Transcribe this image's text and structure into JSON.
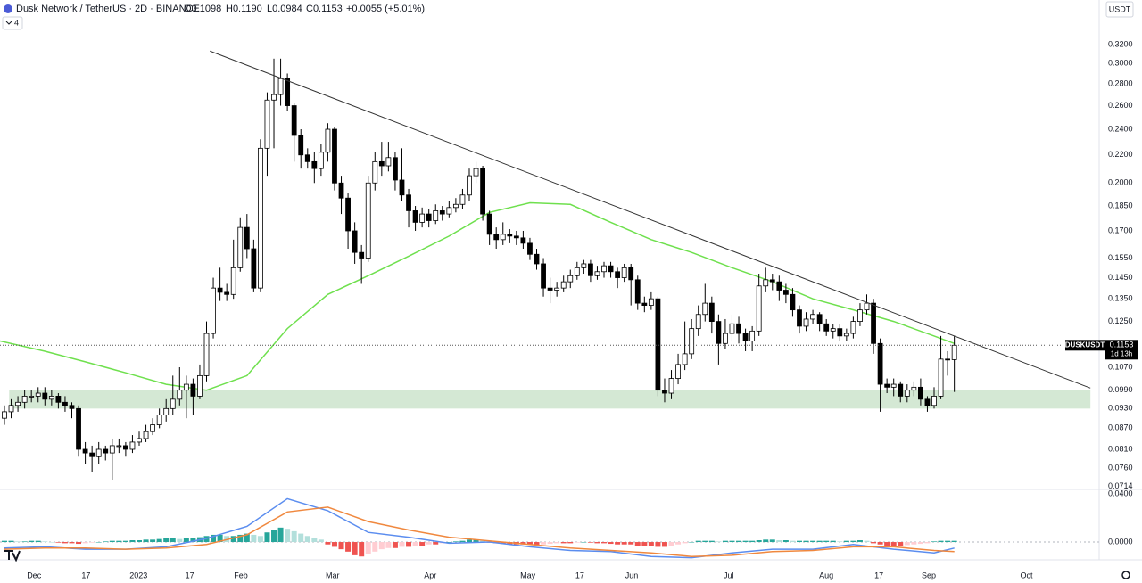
{
  "chart_data": {
    "type": "candlestick",
    "title": "Dusk Network / TetherUS · 2D · BINANCE",
    "legend": {
      "open": "O0.1098",
      "high": "H0.1190",
      "low": "L0.0984",
      "close": "C0.1153",
      "change": "+0.0055 (+5.01%)"
    },
    "indicator_count": 4,
    "currency": "USDT",
    "symbol_label": "DUSKUSDT",
    "last_price": 0.1153,
    "countdown": "1d 13h",
    "log": true,
    "grid": false,
    "up_color": "#ffffff",
    "down_color": "#000000",
    "border_color": "#000000",
    "ylim": [
      0.0709,
      0.3722
    ],
    "yticks": [
      {
        "value": 0.32,
        "label": "0.3200"
      },
      {
        "value": 0.3,
        "label": "0.3000"
      },
      {
        "value": 0.28,
        "label": "0.2800"
      },
      {
        "value": 0.26,
        "label": "0.2600"
      },
      {
        "value": 0.24,
        "label": "0.2400"
      },
      {
        "value": 0.22,
        "label": "0.2200"
      },
      {
        "value": 0.2,
        "label": "0.2000"
      },
      {
        "value": 0.185,
        "label": "0.1850"
      },
      {
        "value": 0.17,
        "label": "0.1700"
      },
      {
        "value": 0.155,
        "label": "0.1550"
      },
      {
        "value": 0.145,
        "label": "0.1450"
      },
      {
        "value": 0.135,
        "label": "0.1350"
      },
      {
        "value": 0.125,
        "label": "0.1250"
      },
      {
        "value": 0.107,
        "label": "0.1070"
      },
      {
        "value": 0.099,
        "label": "0.0990"
      },
      {
        "value": 0.093,
        "label": "0.0930"
      },
      {
        "value": 0.087,
        "label": "0.0870"
      },
      {
        "value": 0.081,
        "label": "0.0810"
      },
      {
        "value": 0.076,
        "label": "0.0760"
      },
      {
        "value": 0.0714,
        "label": "0.0714"
      }
    ],
    "xlim": [
      -0.66,
      162.5
    ],
    "xticks": [
      {
        "value": 4.4,
        "label": "Dec"
      },
      {
        "value": 12.1,
        "label": "17"
      },
      {
        "value": 19.9,
        "label": "2023"
      },
      {
        "value": 27.5,
        "label": "17"
      },
      {
        "value": 35.1,
        "label": "Feb"
      },
      {
        "value": 48.7,
        "label": "Mar"
      },
      {
        "value": 63.2,
        "label": "Apr"
      },
      {
        "value": 77.7,
        "label": "May"
      },
      {
        "value": 85.4,
        "label": "17"
      },
      {
        "value": 93.1,
        "label": "Jun"
      },
      {
        "value": 107.5,
        "label": "Jul"
      },
      {
        "value": 122.0,
        "label": "Aug"
      },
      {
        "value": 129.8,
        "label": "17"
      },
      {
        "value": 137.2,
        "label": "Sep"
      },
      {
        "value": 151.7,
        "label": "Oct"
      }
    ],
    "candles": [
      [
        0.09,
        0.094,
        0.088,
        0.092
      ],
      [
        0.092,
        0.096,
        0.09,
        0.094
      ],
      [
        0.094,
        0.097,
        0.092,
        0.095
      ],
      [
        0.095,
        0.099,
        0.093,
        0.097
      ],
      [
        0.097,
        0.099,
        0.095,
        0.097
      ],
      [
        0.097,
        0.1,
        0.095,
        0.098
      ],
      [
        0.098,
        0.1,
        0.094,
        0.096
      ],
      [
        0.096,
        0.099,
        0.094,
        0.097
      ],
      [
        0.097,
        0.098,
        0.093,
        0.095
      ],
      [
        0.095,
        0.097,
        0.092,
        0.094
      ],
      [
        0.094,
        0.095,
        0.09,
        0.093
      ],
      [
        0.093,
        0.094,
        0.079,
        0.081
      ],
      [
        0.081,
        0.083,
        0.077,
        0.08
      ],
      [
        0.08,
        0.082,
        0.075,
        0.079
      ],
      [
        0.079,
        0.083,
        0.077,
        0.081
      ],
      [
        0.081,
        0.082,
        0.078,
        0.08
      ],
      [
        0.08,
        0.084,
        0.073,
        0.082
      ],
      [
        0.082,
        0.084,
        0.08,
        0.082
      ],
      [
        0.082,
        0.083,
        0.079,
        0.081
      ],
      [
        0.081,
        0.085,
        0.08,
        0.083
      ],
      [
        0.083,
        0.086,
        0.082,
        0.084
      ],
      [
        0.084,
        0.088,
        0.083,
        0.086
      ],
      [
        0.086,
        0.09,
        0.085,
        0.088
      ],
      [
        0.088,
        0.093,
        0.087,
        0.091
      ],
      [
        0.091,
        0.096,
        0.089,
        0.093
      ],
      [
        0.093,
        0.104,
        0.091,
        0.096
      ],
      [
        0.096,
        0.107,
        0.094,
        0.099
      ],
      [
        0.099,
        0.104,
        0.09,
        0.101
      ],
      [
        0.101,
        0.103,
        0.091,
        0.097
      ],
      [
        0.097,
        0.108,
        0.096,
        0.104
      ],
      [
        0.104,
        0.125,
        0.102,
        0.12
      ],
      [
        0.12,
        0.145,
        0.118,
        0.14
      ],
      [
        0.14,
        0.15,
        0.134,
        0.138
      ],
      [
        0.138,
        0.142,
        0.134,
        0.137
      ],
      [
        0.137,
        0.165,
        0.135,
        0.15
      ],
      [
        0.15,
        0.178,
        0.148,
        0.172
      ],
      [
        0.172,
        0.18,
        0.155,
        0.16
      ],
      [
        0.16,
        0.165,
        0.138,
        0.14
      ],
      [
        0.14,
        0.232,
        0.138,
        0.225
      ],
      [
        0.225,
        0.272,
        0.205,
        0.265
      ],
      [
        0.265,
        0.305,
        0.225,
        0.27
      ],
      [
        0.27,
        0.305,
        0.26,
        0.285
      ],
      [
        0.285,
        0.29,
        0.255,
        0.26
      ],
      [
        0.26,
        0.262,
        0.215,
        0.235
      ],
      [
        0.235,
        0.24,
        0.21,
        0.22
      ],
      [
        0.22,
        0.225,
        0.21,
        0.215
      ],
      [
        0.215,
        0.222,
        0.2,
        0.21
      ],
      [
        0.21,
        0.228,
        0.205,
        0.222
      ],
      [
        0.222,
        0.245,
        0.215,
        0.24
      ],
      [
        0.24,
        0.242,
        0.195,
        0.2
      ],
      [
        0.2,
        0.205,
        0.18,
        0.19
      ],
      [
        0.19,
        0.193,
        0.16,
        0.17
      ],
      [
        0.17,
        0.175,
        0.152,
        0.158
      ],
      [
        0.158,
        0.162,
        0.142,
        0.155
      ],
      [
        0.155,
        0.205,
        0.153,
        0.2
      ],
      [
        0.2,
        0.222,
        0.195,
        0.215
      ],
      [
        0.215,
        0.23,
        0.205,
        0.212
      ],
      [
        0.212,
        0.23,
        0.208,
        0.218
      ],
      [
        0.218,
        0.222,
        0.195,
        0.202
      ],
      [
        0.202,
        0.225,
        0.188,
        0.192
      ],
      [
        0.192,
        0.196,
        0.172,
        0.182
      ],
      [
        0.182,
        0.185,
        0.17,
        0.175
      ],
      [
        0.175,
        0.184,
        0.172,
        0.18
      ],
      [
        0.18,
        0.183,
        0.172,
        0.176
      ],
      [
        0.176,
        0.186,
        0.174,
        0.182
      ],
      [
        0.182,
        0.185,
        0.176,
        0.18
      ],
      [
        0.18,
        0.188,
        0.178,
        0.184
      ],
      [
        0.184,
        0.19,
        0.181,
        0.186
      ],
      [
        0.186,
        0.196,
        0.183,
        0.192
      ],
      [
        0.192,
        0.21,
        0.188,
        0.205
      ],
      [
        0.205,
        0.215,
        0.2,
        0.21
      ],
      [
        0.21,
        0.212,
        0.176,
        0.18
      ],
      [
        0.18,
        0.182,
        0.162,
        0.168
      ],
      [
        0.168,
        0.172,
        0.16,
        0.165
      ],
      [
        0.165,
        0.175,
        0.162,
        0.168
      ],
      [
        0.168,
        0.171,
        0.163,
        0.167
      ],
      [
        0.167,
        0.17,
        0.162,
        0.166
      ],
      [
        0.166,
        0.17,
        0.16,
        0.163
      ],
      [
        0.163,
        0.166,
        0.154,
        0.157
      ],
      [
        0.157,
        0.16,
        0.149,
        0.152
      ],
      [
        0.152,
        0.155,
        0.136,
        0.14
      ],
      [
        0.14,
        0.145,
        0.133,
        0.139
      ],
      [
        0.139,
        0.143,
        0.136,
        0.14
      ],
      [
        0.14,
        0.146,
        0.138,
        0.143
      ],
      [
        0.143,
        0.149,
        0.14,
        0.146
      ],
      [
        0.146,
        0.153,
        0.144,
        0.15
      ],
      [
        0.15,
        0.154,
        0.147,
        0.152
      ],
      [
        0.152,
        0.154,
        0.143,
        0.146
      ],
      [
        0.146,
        0.151,
        0.144,
        0.148
      ],
      [
        0.148,
        0.153,
        0.145,
        0.151
      ],
      [
        0.151,
        0.153,
        0.145,
        0.148
      ],
      [
        0.148,
        0.15,
        0.14,
        0.145
      ],
      [
        0.145,
        0.152,
        0.143,
        0.15
      ],
      [
        0.15,
        0.152,
        0.132,
        0.144
      ],
      [
        0.144,
        0.146,
        0.13,
        0.133
      ],
      [
        0.133,
        0.136,
        0.129,
        0.132
      ],
      [
        0.132,
        0.138,
        0.13,
        0.135
      ],
      [
        0.135,
        0.136,
        0.097,
        0.099
      ],
      [
        0.099,
        0.103,
        0.095,
        0.098
      ],
      [
        0.098,
        0.106,
        0.096,
        0.103
      ],
      [
        0.103,
        0.112,
        0.101,
        0.108
      ],
      [
        0.108,
        0.125,
        0.106,
        0.112
      ],
      [
        0.112,
        0.126,
        0.11,
        0.122
      ],
      [
        0.122,
        0.132,
        0.119,
        0.128
      ],
      [
        0.128,
        0.142,
        0.125,
        0.133
      ],
      [
        0.133,
        0.136,
        0.12,
        0.125
      ],
      [
        0.125,
        0.128,
        0.108,
        0.116
      ],
      [
        0.116,
        0.126,
        0.114,
        0.12
      ],
      [
        0.12,
        0.128,
        0.117,
        0.124
      ],
      [
        0.124,
        0.127,
        0.116,
        0.12
      ],
      [
        0.12,
        0.122,
        0.113,
        0.117
      ],
      [
        0.117,
        0.123,
        0.113,
        0.121
      ],
      [
        0.121,
        0.147,
        0.119,
        0.141
      ],
      [
        0.141,
        0.15,
        0.138,
        0.144
      ],
      [
        0.144,
        0.147,
        0.139,
        0.143
      ],
      [
        0.143,
        0.146,
        0.134,
        0.139
      ],
      [
        0.139,
        0.142,
        0.133,
        0.137
      ],
      [
        0.137,
        0.14,
        0.127,
        0.13
      ],
      [
        0.13,
        0.132,
        0.12,
        0.123
      ],
      [
        0.123,
        0.129,
        0.121,
        0.126
      ],
      [
        0.126,
        0.13,
        0.124,
        0.128
      ],
      [
        0.128,
        0.129,
        0.121,
        0.124
      ],
      [
        0.124,
        0.126,
        0.119,
        0.121
      ],
      [
        0.121,
        0.124,
        0.118,
        0.122
      ],
      [
        0.122,
        0.124,
        0.117,
        0.119
      ],
      [
        0.119,
        0.122,
        0.117,
        0.12
      ],
      [
        0.12,
        0.127,
        0.118,
        0.125
      ],
      [
        0.125,
        0.133,
        0.123,
        0.13
      ],
      [
        0.13,
        0.137,
        0.128,
        0.133
      ],
      [
        0.133,
        0.135,
        0.112,
        0.116
      ],
      [
        0.116,
        0.118,
        0.092,
        0.101
      ],
      [
        0.101,
        0.103,
        0.098,
        0.1
      ],
      [
        0.1,
        0.103,
        0.097,
        0.101
      ],
      [
        0.101,
        0.102,
        0.095,
        0.097
      ],
      [
        0.097,
        0.101,
        0.095,
        0.099
      ],
      [
        0.099,
        0.102,
        0.097,
        0.1
      ],
      [
        0.1,
        0.103,
        0.094,
        0.096
      ],
      [
        0.096,
        0.097,
        0.092,
        0.094
      ],
      [
        0.094,
        0.1,
        0.093,
        0.097
      ],
      [
        0.097,
        0.119,
        0.096,
        0.11
      ],
      [
        0.11,
        0.113,
        0.104,
        0.1098
      ],
      [
        0.1098,
        0.119,
        0.0984,
        0.1153
      ]
    ],
    "ma": {
      "color": "#6fe04e",
      "x": [
        -0.66,
        6,
        12,
        18,
        24,
        30,
        36,
        42,
        48,
        54,
        60,
        66,
        72,
        78,
        84,
        90,
        96,
        102,
        108,
        114,
        120,
        126,
        132,
        138,
        141
      ],
      "values": [
        0.117,
        0.113,
        0.109,
        0.105,
        0.101,
        0.099,
        0.104,
        0.122,
        0.137,
        0.146,
        0.156,
        0.167,
        0.181,
        0.187,
        0.186,
        0.175,
        0.165,
        0.158,
        0.15,
        0.143,
        0.135,
        0.13,
        0.125,
        0.119,
        0.116
      ]
    },
    "trendline": {
      "color": "#333333",
      "x": [
        30.5,
        161.2
      ],
      "y": [
        0.313,
        0.0997
      ]
    },
    "zone": {
      "color": "#c9e2c9",
      "x": [
        0.7,
        161.2
      ],
      "y": [
        0.093,
        0.099
      ]
    },
    "macd": {
      "ylim": [
        -0.0148,
        0.043
      ],
      "yticks": [
        {
          "value": 0.04,
          "label": "0.0400"
        },
        {
          "value": 0,
          "label": "0.0000"
        }
      ],
      "x": [
        0,
        6,
        12,
        18,
        24,
        30,
        36,
        42,
        48,
        54,
        60,
        66,
        72,
        78,
        84,
        90,
        96,
        102,
        108,
        114,
        120,
        126,
        132,
        138,
        141
      ],
      "series": [
        {
          "color": "#5b8def",
          "values": [
            -0.005,
            -0.004,
            -0.006,
            -0.006,
            -0.004,
            0.003,
            0.013,
            0.036,
            0.026,
            0.008,
            0.004,
            -0.001,
            0,
            -0.004,
            -0.007,
            -0.008,
            -0.012,
            -0.013,
            -0.009,
            -0.006,
            -0.006,
            -0.002,
            -0.006,
            -0.009,
            -0.005
          ]
        },
        {
          "color": "#f0883e",
          "values": [
            -0.006,
            -0.005,
            -0.005,
            -0.006,
            -0.005,
            -0.002,
            0.006,
            0.025,
            0.029,
            0.017,
            0.01,
            0.004,
            0.001,
            -0.002,
            -0.005,
            -0.007,
            -0.009,
            -0.012,
            -0.011,
            -0.008,
            -0.007,
            -0.004,
            -0.004,
            -0.007,
            -0.008
          ]
        }
      ],
      "hist_colors": {
        "up_strong": "#26a69a",
        "up_weak": "#b2dfdb",
        "down_strong": "#ef5350",
        "down_weak": "#ffcdd2"
      },
      "histogram": [
        0.001,
        0.001,
        0.0005,
        0.0005,
        0.001,
        0.001,
        0.0005,
        0,
        -0.0005,
        -0.001,
        -0.001,
        -0.0015,
        -0.001,
        -0.0005,
        0,
        0.0005,
        0.001,
        0.001,
        0.001,
        0.0015,
        0.0015,
        0.002,
        0.002,
        0.0025,
        0.003,
        0.003,
        0.0025,
        0.003,
        0.003,
        0.004,
        0.005,
        0.006,
        0.006,
        0.005,
        0.005,
        0.006,
        0.007,
        0.006,
        0.005,
        0.008,
        0.01,
        0.012,
        0.011,
        0.009,
        0.007,
        0.005,
        0.003,
        0.002,
        -0.002,
        -0.004,
        -0.006,
        -0.008,
        -0.011,
        -0.012,
        -0.01,
        -0.008,
        -0.006,
        -0.005,
        -0.005,
        -0.004,
        -0.004,
        -0.003,
        -0.003,
        -0.002,
        -0.002,
        -0.001,
        0,
        0.0005,
        0.001,
        0.002,
        0.002,
        0.001,
        -0.0005,
        -0.001,
        -0.0015,
        -0.002,
        -0.002,
        -0.002,
        -0.002,
        -0.0025,
        -0.002,
        -0.0015,
        -0.001,
        -0.001,
        -0.001,
        -0.0005,
        0,
        -0.0005,
        -0.001,
        -0.001,
        -0.0015,
        -0.002,
        -0.002,
        -0.002,
        -0.003,
        -0.003,
        -0.0035,
        -0.004,
        -0.004,
        -0.003,
        -0.002,
        -0.001,
        0,
        0.001,
        0.001,
        0.001,
        0.0005,
        0.001,
        0.001,
        0.001,
        0.001,
        0.001,
        0.0015,
        0.002,
        0.002,
        0.0015,
        0.0015,
        0.001,
        0.001,
        0.001,
        0.001,
        0.001,
        0.001,
        0.001,
        0.0005,
        0.001,
        0.001,
        0.0015,
        0.001,
        -0.001,
        -0.002,
        -0.003,
        -0.003,
        -0.003,
        -0.0025,
        -0.002,
        -0.0015,
        -0.001,
        0.0005,
        0.001,
        0.001,
        0.001
      ]
    }
  }
}
